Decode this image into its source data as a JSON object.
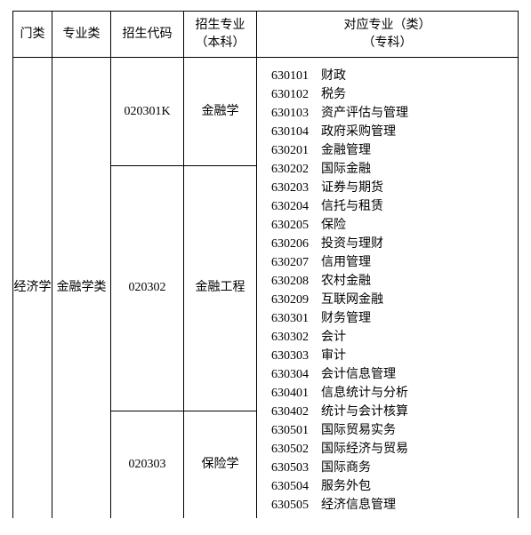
{
  "headers": {
    "col1": "门类",
    "col2": "专业类",
    "col3": "招生代码",
    "col4_line1": "招生专业",
    "col4_line2": "（本科）",
    "col5_line1": "对应专业（类）",
    "col5_line2": "（专科）"
  },
  "category": "经济学",
  "major_class": "金融学类",
  "subjects": [
    {
      "code": "020301K",
      "name": "金融学"
    },
    {
      "code": "020302",
      "name": "金融工程"
    },
    {
      "code": "020303",
      "name": "保险学"
    }
  ],
  "corresponding": [
    {
      "code": "630101",
      "name": "财政"
    },
    {
      "code": "630102",
      "name": "税务"
    },
    {
      "code": "630103",
      "name": "资产评估与管理"
    },
    {
      "code": "630104",
      "name": "政府采购管理"
    },
    {
      "code": "630201",
      "name": "金融管理"
    },
    {
      "code": "630202",
      "name": "国际金融"
    },
    {
      "code": "630203",
      "name": "证券与期货"
    },
    {
      "code": "630204",
      "name": "信托与租赁"
    },
    {
      "code": "630205",
      "name": "保险"
    },
    {
      "code": "630206",
      "name": "投资与理财"
    },
    {
      "code": "630207",
      "name": "信用管理"
    },
    {
      "code": "630208",
      "name": "农村金融"
    },
    {
      "code": "630209",
      "name": "互联网金融"
    },
    {
      "code": "630301",
      "name": "财务管理"
    },
    {
      "code": "630302",
      "name": "会计"
    },
    {
      "code": "630303",
      "name": "审计"
    },
    {
      "code": "630304",
      "name": "会计信息管理"
    },
    {
      "code": "630401",
      "name": "信息统计与分析"
    },
    {
      "code": "630402",
      "name": "统计与会计核算"
    },
    {
      "code": "630501",
      "name": "国际贸易实务"
    },
    {
      "code": "630502",
      "name": "国际经济与贸易"
    },
    {
      "code": "630503",
      "name": "国际商务"
    },
    {
      "code": "630504",
      "name": "服务外包"
    },
    {
      "code": "630505",
      "name": "经济信息管理"
    }
  ]
}
